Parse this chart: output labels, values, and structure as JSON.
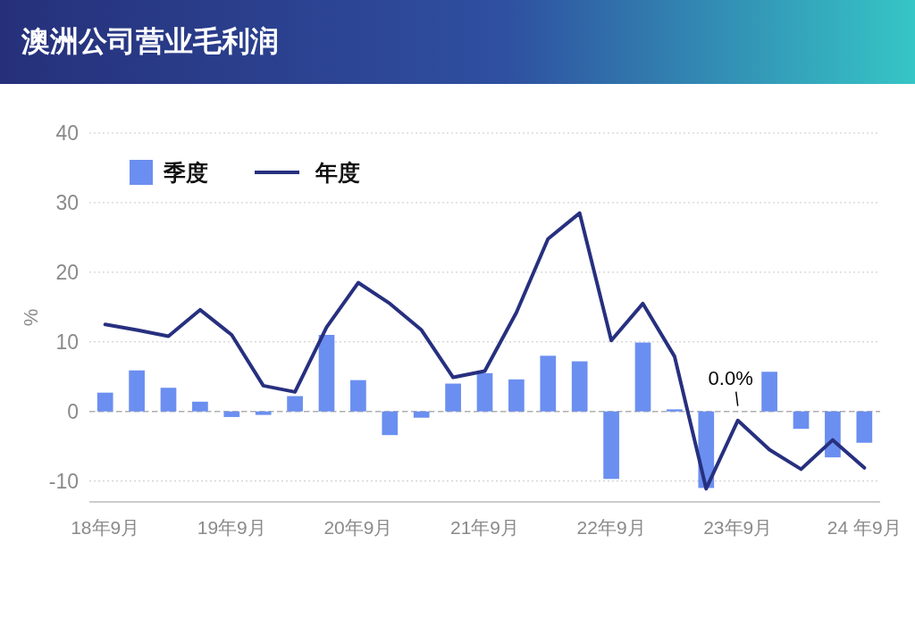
{
  "chart_data": {
    "type": "bar",
    "title": "澳洲公司营业毛利润",
    "ylabel": "%",
    "categories": [
      "18年9月",
      null,
      null,
      null,
      "19年9月",
      null,
      null,
      null,
      "20年9月",
      null,
      null,
      null,
      "21年9月",
      null,
      null,
      null,
      "22年9月",
      null,
      null,
      null,
      "23年9月",
      null,
      null,
      null,
      "24 年9月"
    ],
    "series": [
      {
        "name": "季度",
        "color": "#6b8ff0",
        "values": [
          2.7,
          5.9,
          3.4,
          1.4,
          -0.8,
          -0.5,
          2.2,
          11.0,
          4.5,
          -3.4,
          -0.9,
          4.0,
          5.5,
          4.6,
          8.0,
          7.2,
          -9.7,
          9.9,
          0.3,
          -11.0,
          0.0,
          5.7,
          -2.5,
          -6.6,
          -4.5
        ]
      },
      {
        "name": "年度",
        "type": "line",
        "color": "#27307f",
        "values": [
          12.5,
          11.7,
          10.8,
          14.6,
          11.0,
          3.7,
          2.8,
          12.1,
          18.5,
          15.5,
          11.7,
          4.9,
          5.8,
          14.2,
          24.8,
          28.5,
          10.2,
          15.5,
          7.9,
          -11.1,
          -1.3,
          -5.5,
          -8.3,
          -4.1,
          -8.1
        ]
      }
    ],
    "annotations": [
      {
        "text": "0.0%",
        "x": "23年9月",
        "y": 0
      }
    ],
    "ylim": [
      -13,
      40
    ],
    "yticks": [
      -10,
      0,
      10,
      20,
      30,
      40
    ],
    "ref_lines": [
      {
        "axis": "y",
        "value": 0,
        "line_style": "dashed",
        "color": "#b0b0b0"
      }
    ],
    "grid": "y",
    "legend": "top left"
  }
}
